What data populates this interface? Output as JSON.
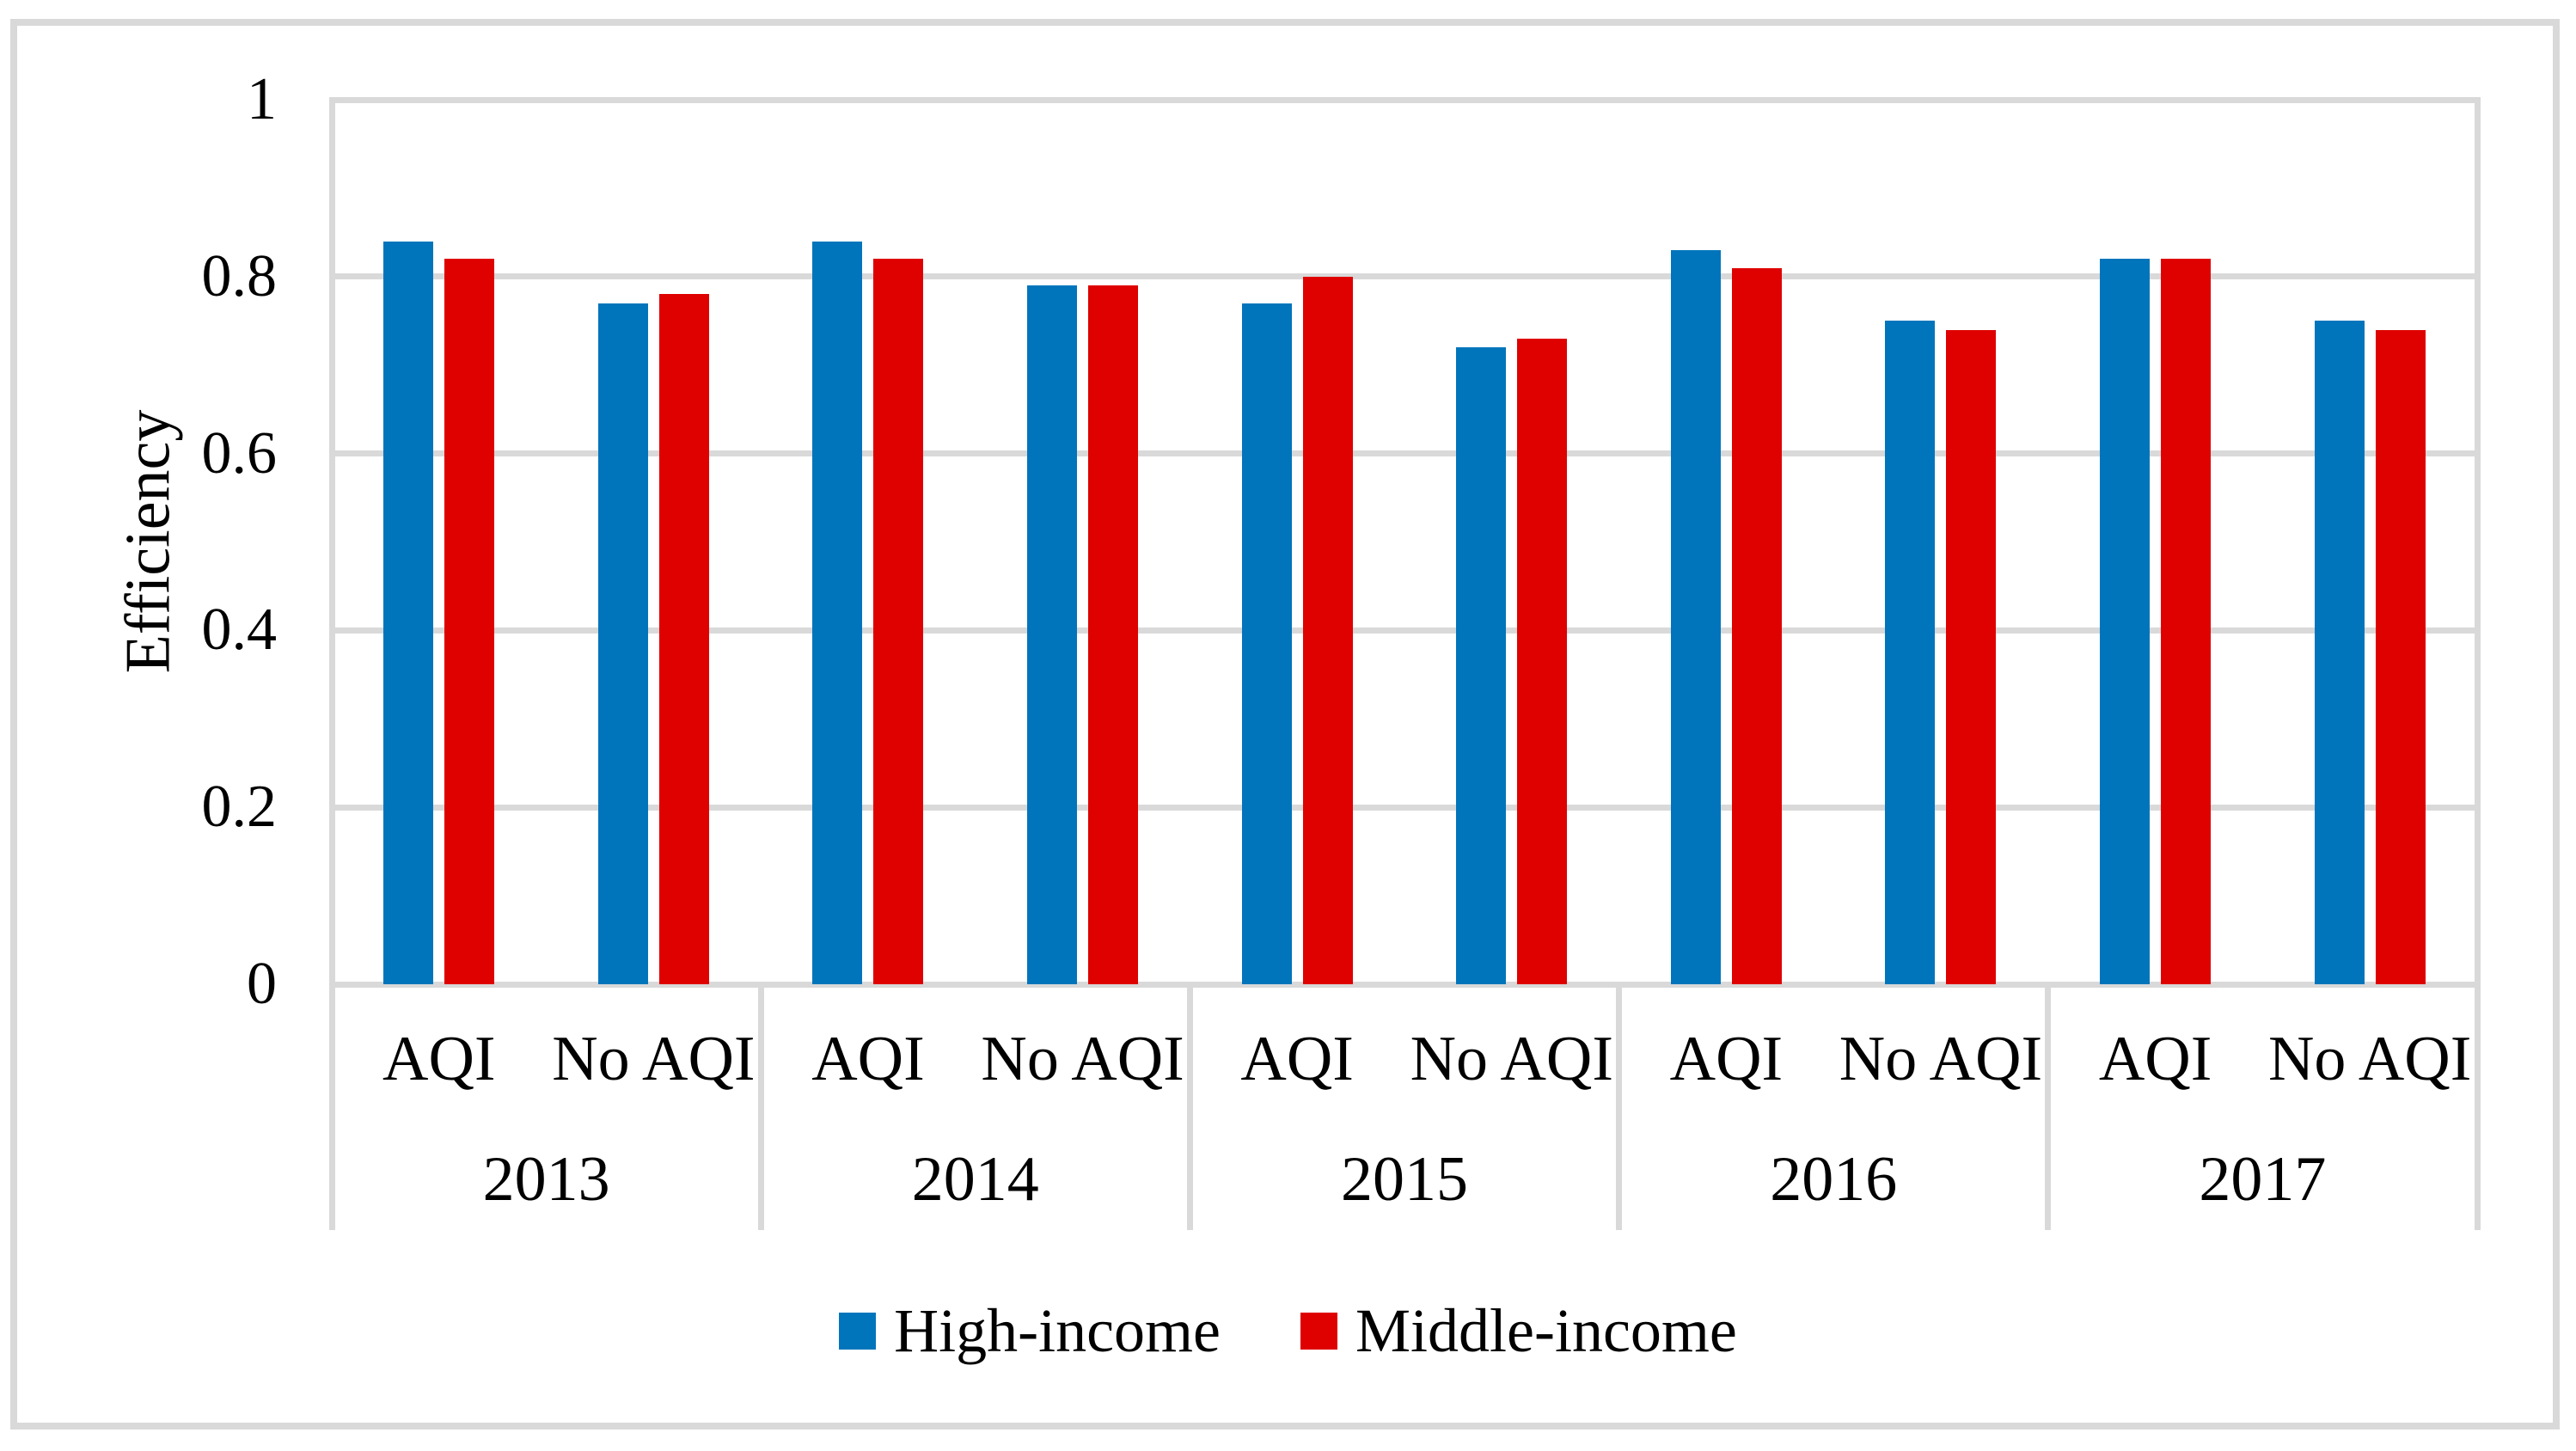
{
  "figure": {
    "background": "#ffffff",
    "border_color": "#d9d9d9"
  },
  "chart_data": {
    "type": "bar",
    "title": "",
    "xlabel": "",
    "ylabel": "Efficiency",
    "ylim": [
      0,
      1
    ],
    "yticks": [
      0,
      0.2,
      0.4,
      0.6,
      0.8,
      1
    ],
    "ytick_labels": [
      "0",
      "0.2",
      "0.4",
      "0.6",
      "0.8",
      "1"
    ],
    "grid": true,
    "grid_color": "#d9d9d9",
    "legend_position": "bottom",
    "years": [
      "2013",
      "2014",
      "2015",
      "2016",
      "2017"
    ],
    "cluster_labels": [
      "AQI",
      "No AQI"
    ],
    "series": [
      {
        "name": "High-income",
        "color": "#0075bb",
        "aqi": [
          0.84,
          0.84,
          0.77,
          0.83,
          0.82
        ],
        "no_aqi": [
          0.77,
          0.79,
          0.72,
          0.75,
          0.75
        ]
      },
      {
        "name": "Middle-income",
        "color": "#df0000",
        "aqi": [
          0.82,
          0.82,
          0.8,
          0.81,
          0.82
        ],
        "no_aqi": [
          0.78,
          0.79,
          0.73,
          0.74,
          0.74
        ]
      }
    ]
  }
}
